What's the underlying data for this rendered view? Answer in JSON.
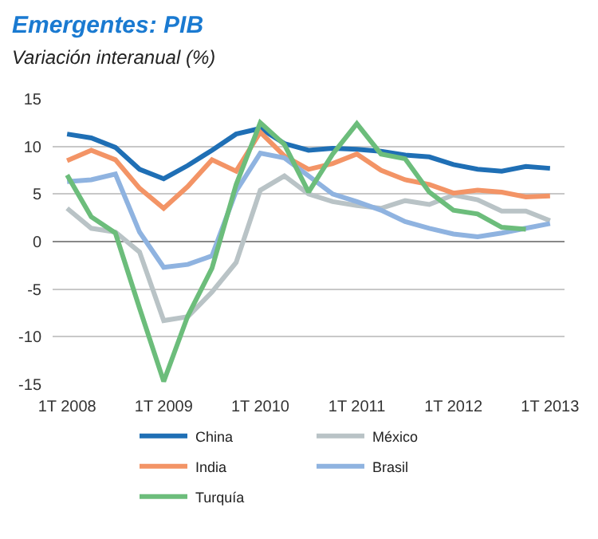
{
  "chart_data": {
    "type": "line",
    "title": "Emergentes: PIB",
    "subtitle": "Variación interanual (%)",
    "categories": [
      "1T 2008",
      null,
      null,
      null,
      "1T 2009",
      null,
      null,
      null,
      "1T 2010",
      null,
      null,
      null,
      "1T 2011",
      null,
      null,
      null,
      "1T 2012",
      null,
      null,
      null,
      "1T 2013"
    ],
    "series": [
      {
        "name": "China",
        "color": "#1f6fb5",
        "values": [
          11.3,
          10.9,
          9.9,
          7.6,
          6.6,
          8.0,
          9.6,
          11.3,
          11.9,
          10.3,
          9.6,
          9.8,
          9.7,
          9.5,
          9.1,
          8.9,
          8.1,
          7.6,
          7.4,
          7.9,
          7.7
        ]
      },
      {
        "name": "México",
        "color": "#b9c3c6",
        "values": [
          3.5,
          1.4,
          1.0,
          -1.1,
          -8.3,
          -7.9,
          -5.3,
          -2.2,
          5.4,
          6.9,
          5.0,
          4.2,
          3.8,
          3.5,
          4.3,
          3.9,
          4.9,
          4.4,
          3.2,
          3.2,
          2.2
        ]
      },
      {
        "name": "India",
        "color": "#f39466",
        "values": [
          8.5,
          9.6,
          8.6,
          5.6,
          3.5,
          5.8,
          8.6,
          7.4,
          11.5,
          9.0,
          7.6,
          8.2,
          9.2,
          7.5,
          6.5,
          6.0,
          5.1,
          5.4,
          5.2,
          4.7,
          4.8
        ]
      },
      {
        "name": "Brasil",
        "color": "#8fb3e0",
        "values": [
          6.3,
          6.5,
          7.1,
          1.0,
          -2.7,
          -2.4,
          -1.5,
          5.3,
          9.3,
          8.8,
          6.9,
          5.0,
          4.2,
          3.3,
          2.1,
          1.4,
          0.8,
          0.5,
          0.9,
          1.4,
          1.9
        ]
      },
      {
        "name": "Turquía",
        "color": "#6cbd7b",
        "values": [
          7.0,
          2.6,
          0.9,
          -7.0,
          -14.7,
          -7.8,
          -2.8,
          6.0,
          12.5,
          10.2,
          5.2,
          9.2,
          12.4,
          9.2,
          8.7,
          5.2,
          3.3,
          2.9,
          1.5,
          1.3,
          null
        ]
      }
    ],
    "ylim": [
      -15,
      15
    ],
    "yticks": [
      -15,
      -10,
      -5,
      0,
      5,
      10,
      15
    ],
    "grid": "y",
    "legend": "bottom"
  }
}
